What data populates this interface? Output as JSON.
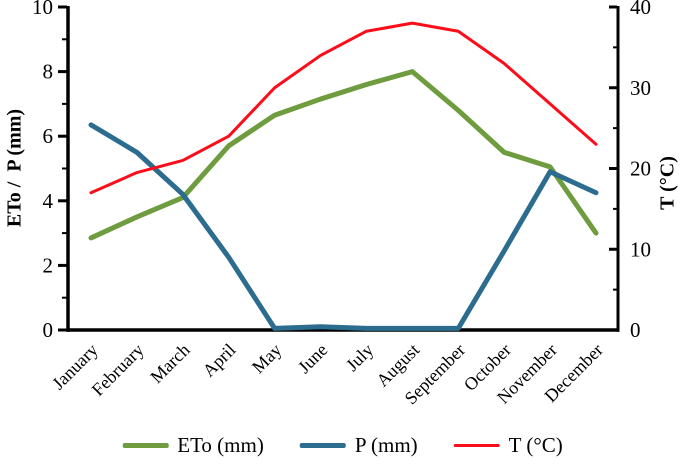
{
  "figure": {
    "background": "#ffffff",
    "axis_color": "#000000"
  },
  "chart_data": {
    "type": "line",
    "title": "",
    "categories": [
      "January",
      "February",
      "March",
      "April",
      "May",
      "June",
      "July",
      "August",
      "September",
      "October",
      "November",
      "December"
    ],
    "series": [
      {
        "name": "ETo (mm)",
        "axis": "left",
        "color": "#6E9C3E",
        "width": 5,
        "values": [
          2.85,
          3.5,
          4.1,
          5.7,
          6.65,
          7.15,
          7.6,
          8.0,
          6.8,
          5.5,
          5.05,
          3.0
        ]
      },
      {
        "name": "P (mm)",
        "axis": "left",
        "color": "#2B6C8F",
        "width": 5,
        "values": [
          6.35,
          5.5,
          4.2,
          2.25,
          0.05,
          0.1,
          0.05,
          0.05,
          0.05,
          2.45,
          4.9,
          4.25
        ]
      },
      {
        "name": "T (°C)",
        "axis": "right",
        "color": "#FB0D1A",
        "width": 3,
        "values": [
          17,
          19.5,
          21,
          24,
          30,
          34,
          37,
          38,
          37,
          33,
          28,
          23
        ]
      }
    ],
    "left_axis": {
      "label": "ETo /  P (mm)",
      "min": 0,
      "max": 10,
      "major_ticks": [
        0,
        2,
        4,
        6,
        8,
        10
      ],
      "minor_ticks": [
        1,
        3,
        5,
        7,
        9
      ]
    },
    "right_axis": {
      "label": "T (°C)",
      "min": 0,
      "max": 40,
      "major_ticks": [
        0,
        10,
        20,
        30,
        40
      ],
      "minor_ticks": [
        5,
        15,
        25,
        35
      ]
    },
    "x_axis": {
      "tick_label_rotation_deg": -45
    },
    "grid": false,
    "legend_position": "bottom"
  }
}
